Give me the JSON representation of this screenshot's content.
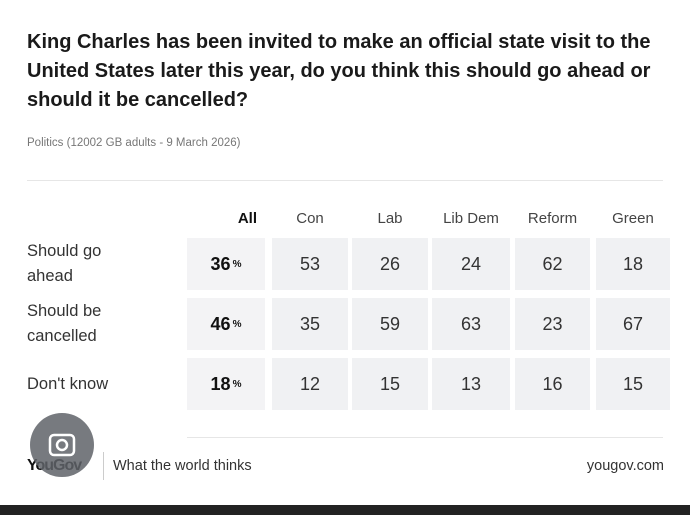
{
  "header": {
    "title": "King Charles has been invited to make an official state visit to the United States later this year, do you think this should go ahead or should it be cancelled?",
    "subtitle": "Politics (12002 GB adults - 9 March 2026)"
  },
  "table": {
    "columns": [
      "All",
      "Con",
      "Lab",
      "Lib Dem",
      "Reform",
      "Green"
    ],
    "rows": [
      {
        "label": "Should go ahead",
        "all": 36,
        "all_unit": "%",
        "values": [
          53,
          26,
          24,
          62,
          18
        ]
      },
      {
        "label": "Should be cancelled",
        "all": 46,
        "all_unit": "%",
        "values": [
          35,
          59,
          63,
          23,
          67
        ]
      },
      {
        "label": "Don't know",
        "all": 18,
        "all_unit": "%",
        "values": [
          12,
          15,
          13,
          16,
          15
        ]
      }
    ]
  },
  "footer": {
    "logo": "YouGov",
    "tagline": "What the world thinks",
    "url": "yougov.com"
  }
}
